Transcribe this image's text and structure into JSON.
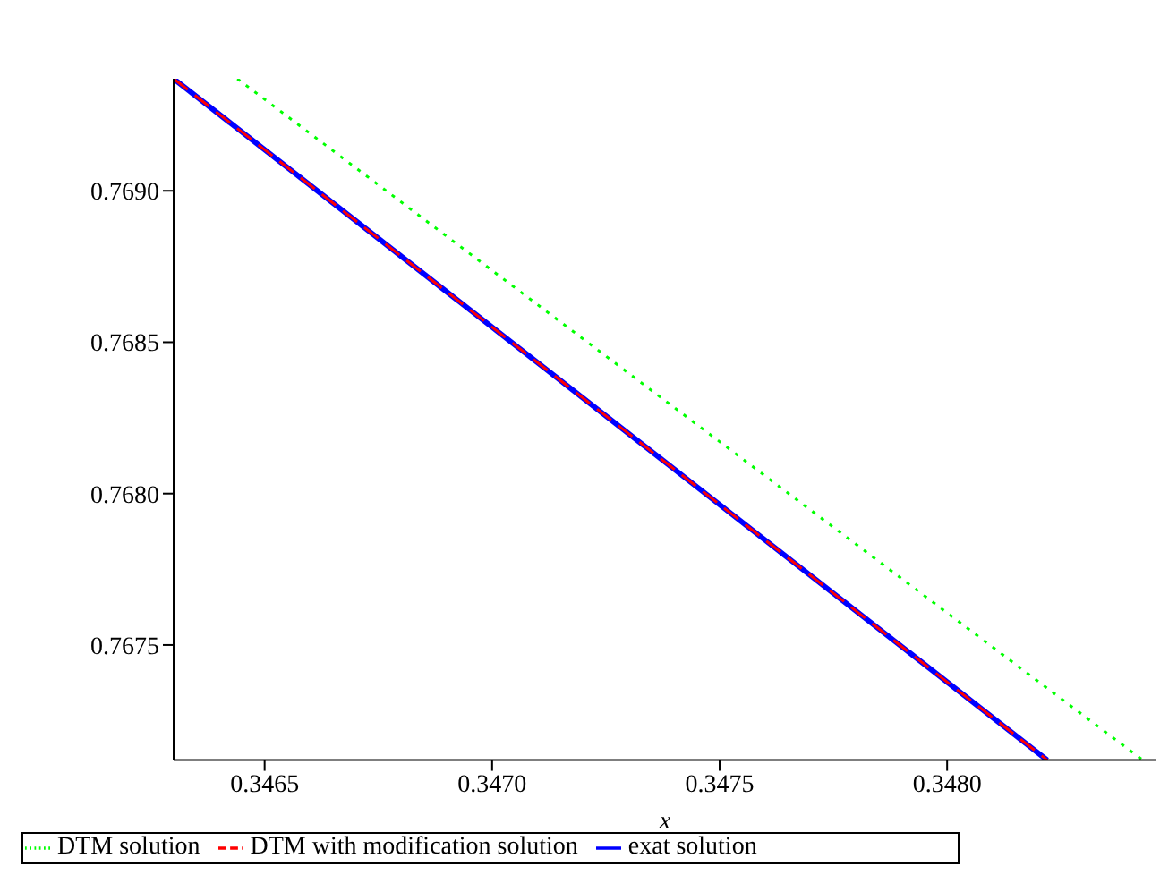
{
  "chart_data": {
    "type": "line",
    "xlabel": "x",
    "xlim": [
      0.3463,
      0.34846
    ],
    "xticks": [
      {
        "value": 0.3465,
        "label": "0.3465"
      },
      {
        "value": 0.347,
        "label": "0.3470"
      },
      {
        "value": 0.3475,
        "label": "0.3475"
      },
      {
        "value": 0.348,
        "label": "0.3480"
      }
    ],
    "ylim": [
      0.76712,
      0.76937
    ],
    "yticks": [
      {
        "value": 0.7675,
        "label": "0.7675"
      },
      {
        "value": 0.768,
        "label": "0.7680"
      },
      {
        "value": 0.7685,
        "label": "0.7685"
      },
      {
        "value": 0.769,
        "label": "0.7690"
      }
    ],
    "grid": false,
    "legend": "bottom",
    "marker": "none",
    "series": [
      {
        "name": "exat solution",
        "color": "#0000ff",
        "line_style": "solid",
        "x": [
          0.3463,
          0.34822
        ],
        "values": [
          0.76937,
          0.76712
        ]
      },
      {
        "name": "DTM with modification solution",
        "color": "#ff0000",
        "line_style": "dashed",
        "x": [
          0.3463,
          0.34822
        ],
        "values": [
          0.76937,
          0.76712
        ]
      },
      {
        "name": "DTM solution",
        "color": "#00ff00",
        "line_style": "dotted",
        "x": [
          0.34644,
          0.34843
        ],
        "values": [
          0.76937,
          0.76712
        ]
      }
    ]
  }
}
